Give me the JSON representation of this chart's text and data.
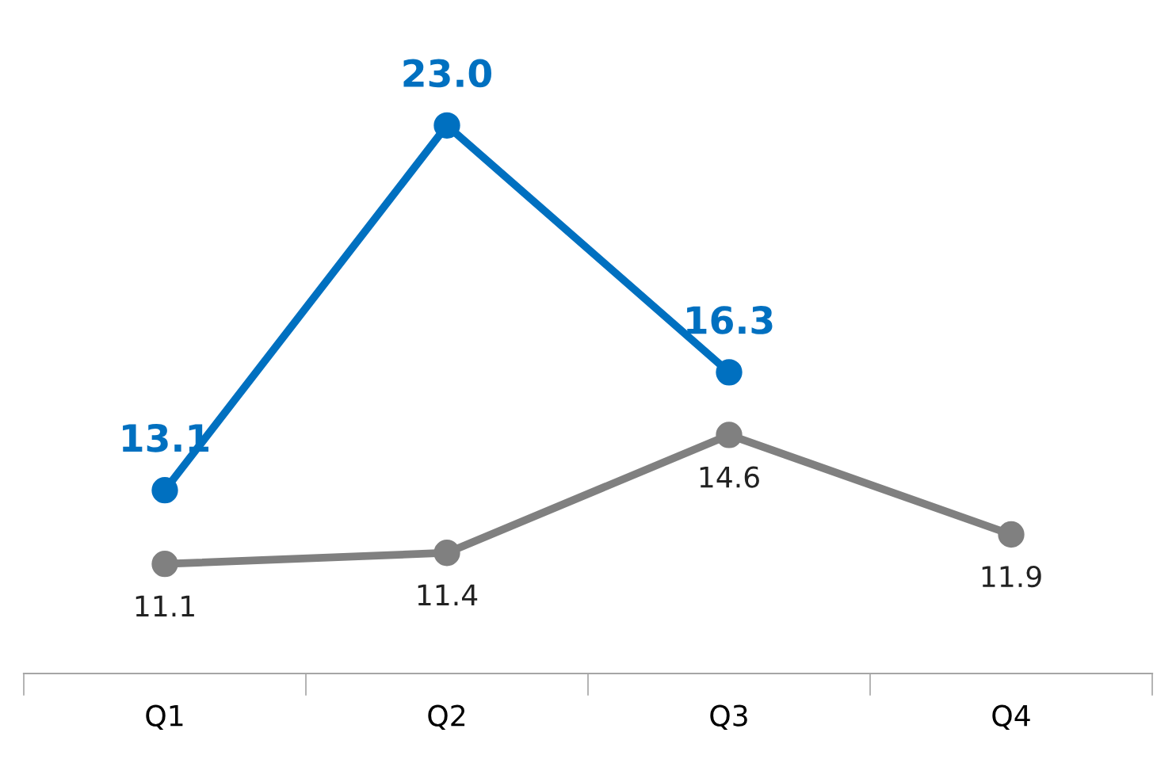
{
  "chart_data": {
    "type": "line",
    "categories": [
      "Q1",
      "Q2",
      "Q3",
      "Q4"
    ],
    "series": [
      {
        "color": "#0070c0",
        "values": [
          13.1,
          23.0,
          16.3,
          null
        ],
        "value_labels": [
          "13.1",
          "23.0",
          "16.3",
          null
        ]
      },
      {
        "color": "#808080",
        "values": [
          11.1,
          11.4,
          14.6,
          11.9
        ],
        "value_labels": [
          "11.1",
          "11.4",
          "14.6",
          "11.9"
        ]
      }
    ],
    "tick_labels": "x",
    "marker": "circle",
    "line_style": "solid",
    "grid": false,
    "legend": false
  }
}
